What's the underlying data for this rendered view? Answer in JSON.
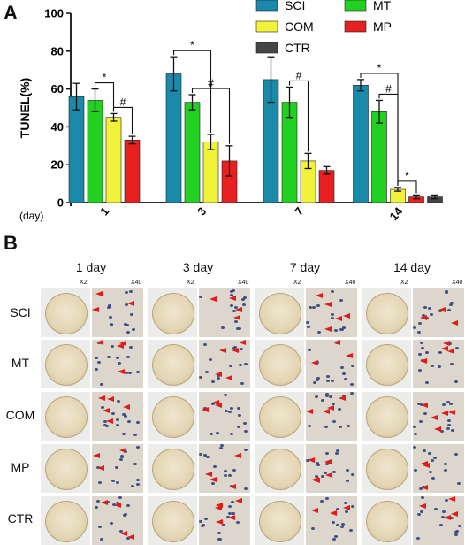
{
  "panel_a_letter": "A",
  "panel_b_letter": "B",
  "chart_data": {
    "type": "bar",
    "ylabel": "TUNEL(%)",
    "xlabel": "(day)",
    "ylim": [
      0,
      100
    ],
    "yticks": [
      0,
      20,
      40,
      60,
      80,
      100
    ],
    "categories": [
      "1",
      "3",
      "7",
      "14"
    ],
    "legend": {
      "placement": "top-right"
    },
    "series": [
      {
        "name": "SCI",
        "color": "#1a8aaa",
        "values": [
          56,
          68,
          65,
          62
        ],
        "errors": [
          7,
          9,
          12,
          3
        ]
      },
      {
        "name": "MT",
        "color": "#22d022",
        "values": [
          54,
          53,
          53,
          48
        ],
        "errors": [
          6,
          4,
          8,
          6
        ]
      },
      {
        "name": "COM",
        "color": "#f2f23a",
        "values": [
          45,
          32,
          22,
          7
        ],
        "errors": [
          2,
          4,
          4,
          1
        ]
      },
      {
        "name": "MP",
        "color": "#e82020",
        "values": [
          33,
          22,
          17,
          3
        ],
        "errors": [
          2,
          8,
          2,
          1
        ]
      },
      {
        "name": "CTR",
        "color": "#454545",
        "values": [
          null,
          null,
          null,
          3
        ],
        "errors": [
          null,
          null,
          null,
          1
        ]
      }
    ],
    "significance": [
      {
        "group": 0,
        "from": 1,
        "to": 2,
        "label": "*"
      },
      {
        "group": 0,
        "from": 2,
        "to": 3,
        "label": "#"
      },
      {
        "group": 1,
        "from": 0,
        "to": 2,
        "label": "*"
      },
      {
        "group": 1,
        "from": 1,
        "to": 3,
        "label": "#"
      },
      {
        "group": 2,
        "from": 1,
        "to": 2,
        "label": "#"
      },
      {
        "group": 3,
        "from": 0,
        "to": 2,
        "label": "*"
      },
      {
        "group": 3,
        "from": 1,
        "to": 2,
        "label": "#"
      },
      {
        "group": 3,
        "from": 2,
        "to": 3,
        "label": "*"
      }
    ]
  },
  "panel_b": {
    "columns": [
      "1 day",
      "3 day",
      "7 day",
      "14 day"
    ],
    "rows": [
      "SCI",
      "MT",
      "COM",
      "MP",
      "CTR"
    ],
    "mag_low": "X2",
    "mag_high": "X40"
  }
}
